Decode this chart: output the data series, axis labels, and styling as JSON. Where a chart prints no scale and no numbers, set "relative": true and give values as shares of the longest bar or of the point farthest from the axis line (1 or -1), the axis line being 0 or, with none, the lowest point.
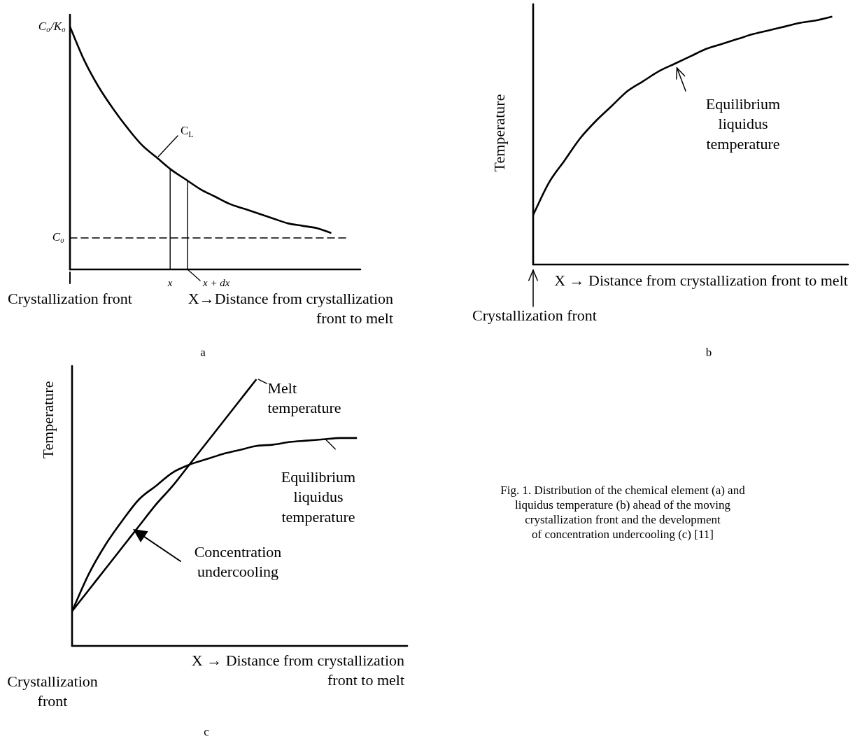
{
  "chart_data": [
    {
      "type": "line",
      "title": "a",
      "xlabel": "X→Distance from crystallization front to melt",
      "relative": true,
      "marker": "none",
      "line_style": "solid",
      "categories": [
        null,
        null,
        null,
        null,
        null,
        null,
        null,
        null,
        null,
        null,
        null,
        null,
        null,
        null,
        null,
        null,
        null,
        null,
        null,
        null,
        null
      ],
      "series": [
        {
          "name": "C$_{L}$",
          "color": "#000000",
          "values": [
            1.0,
            0.86,
            0.75,
            0.66,
            0.58,
            0.51,
            0.46,
            0.41,
            0.37,
            0.33,
            0.3,
            0.27,
            0.25,
            0.23,
            0.21,
            0.19,
            0.18,
            0.17,
            0.15,
            null,
            null
          ]
        }
      ],
      "ref_lines": [
        {
          "axis": "y",
          "value": 0.13,
          "label": "C₀",
          "color": "#000000",
          "line_style": "dashed"
        }
      ],
      "annotations": [
        "Crystallization front",
        "C₀/K₀",
        "x",
        "x + dx"
      ]
    },
    {
      "type": "line",
      "title": "b",
      "xlabel": "X → Distance from crystallization front to melt",
      "ylabel": "Temperature",
      "relative": true,
      "marker": "none",
      "line_style": "solid",
      "categories": [
        null,
        null,
        null,
        null,
        null,
        null,
        null,
        null,
        null,
        null,
        null,
        null,
        null,
        null,
        null,
        null,
        null,
        null,
        null,
        null,
        null
      ],
      "series": [
        {
          "name": "Equilibrium liquidus temperature",
          "color": "#000000",
          "values": [
            0.2,
            0.33,
            0.42,
            0.51,
            0.58,
            0.64,
            0.7,
            0.74,
            0.78,
            0.81,
            0.84,
            0.87,
            0.89,
            0.91,
            0.93,
            0.945,
            0.96,
            0.975,
            0.985,
            1.0,
            null
          ]
        }
      ],
      "annotations": [
        "Crystallization front"
      ]
    },
    {
      "type": "line",
      "title": "c",
      "xlabel": "X → Distance from crystallization front to melt",
      "ylabel": "Temperature",
      "relative": true,
      "marker": "none",
      "line_style": "solid",
      "categories": [
        null,
        null,
        null,
        null,
        null,
        null,
        null,
        null,
        null,
        null,
        null,
        null,
        null,
        null,
        null,
        null,
        null,
        null,
        null,
        null,
        null
      ],
      "series": [
        {
          "name": "Melt temperature",
          "color": "#000000",
          "values": [
            0.13,
            0.21,
            0.29,
            0.37,
            0.45,
            0.53,
            0.6,
            0.68,
            0.76,
            0.84,
            0.92,
            1.0,
            null,
            null,
            null,
            null,
            null,
            null,
            null,
            null,
            null
          ]
        },
        {
          "name": "Equilibrium liquidus temperature",
          "color": "#000000",
          "values": [
            0.13,
            0.27,
            0.38,
            0.47,
            0.55,
            0.6,
            0.65,
            0.68,
            0.7,
            0.72,
            0.735,
            0.75,
            0.755,
            0.765,
            0.77,
            0.775,
            0.78,
            0.78,
            null,
            null,
            null
          ]
        }
      ],
      "annotations": [
        "Crystallization front",
        "Concentration undercooling"
      ]
    },
    {
      "type": "other",
      "annotations": [
        "Fig. 1. Distribution of the chemical element (a) and\nliquidus temperature (b) ahead of the moving\ncrystallization front and the development\nof concentration undercooling (c) [11]"
      ]
    }
  ]
}
